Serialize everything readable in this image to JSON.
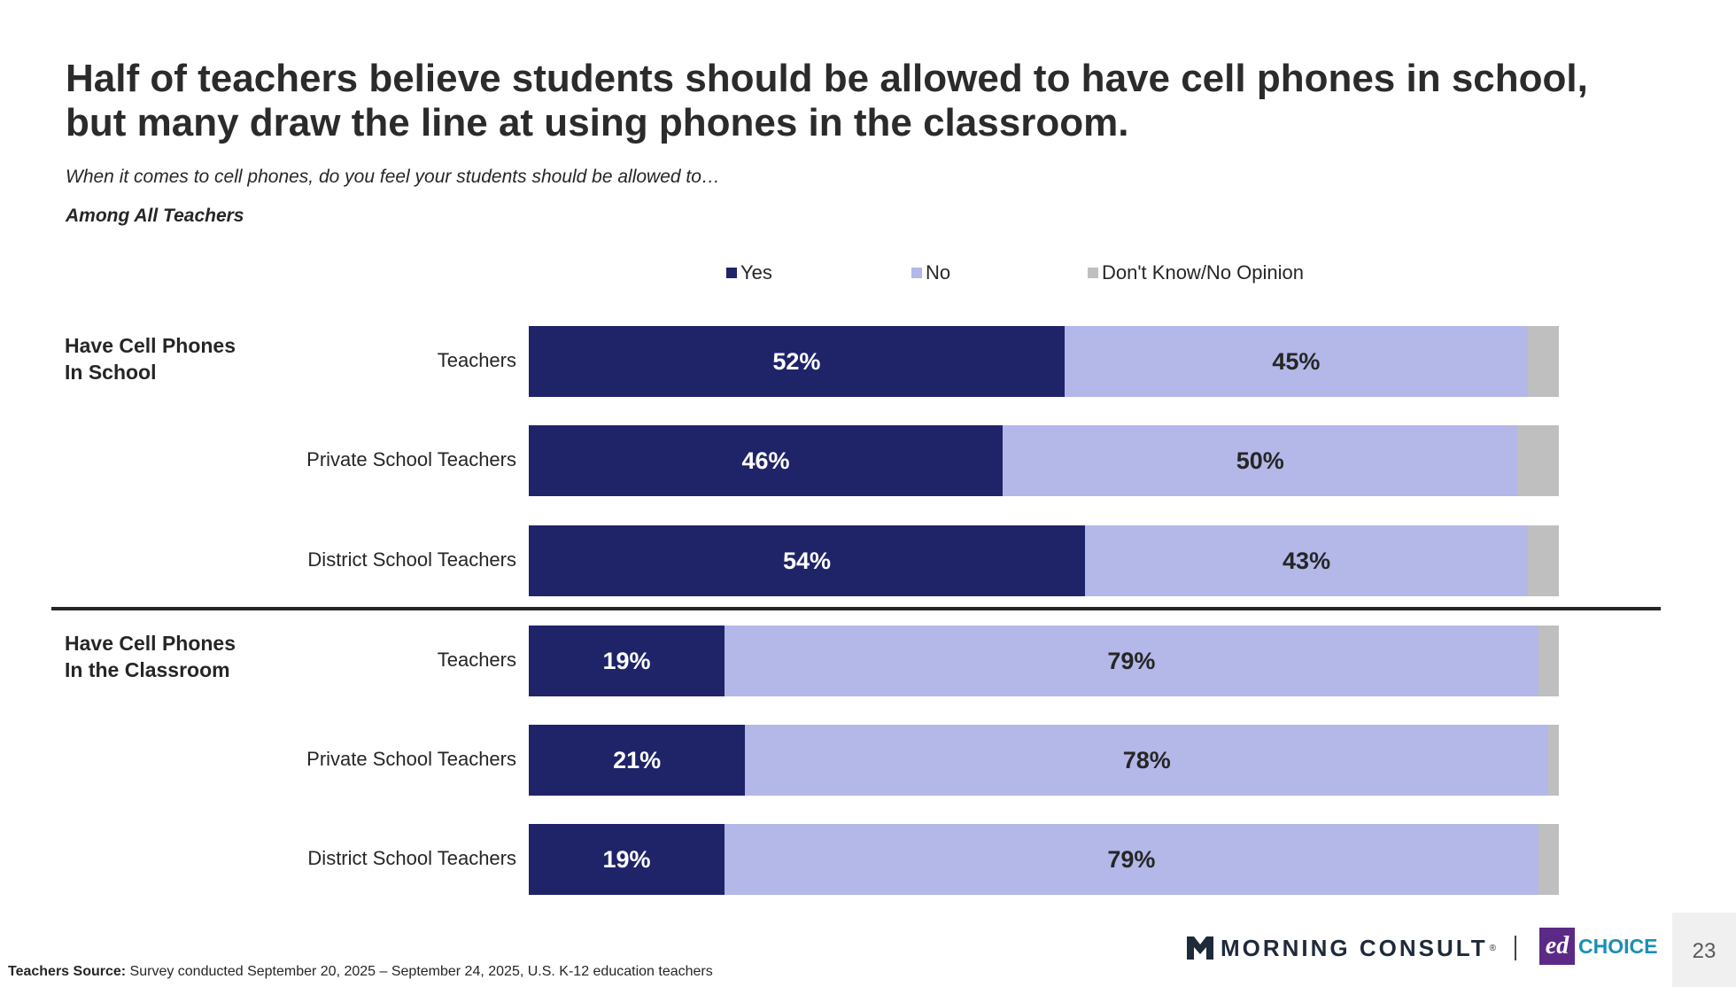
{
  "title": {
    "line1": "Half of teachers believe students should be allowed to have cell phones in school,",
    "line2": "but many draw the line at using phones in the classroom."
  },
  "subtitle": "When it comes to cell phones, do you feel your students should be allowed to…",
  "base_label": "Among All Teachers",
  "colors": {
    "yes": "#1f2469",
    "no": "#b3b8e8",
    "dk": "#bfbfbf"
  },
  "chart_data": {
    "type": "bar",
    "orientation": "horizontal",
    "stacked": true,
    "legend": [
      "Yes",
      "No",
      "Don't Know/No Opinion"
    ],
    "legend_position": "top",
    "xlim": [
      0,
      100
    ],
    "groups": [
      {
        "label_line1": "Have Cell Phones",
        "label_line2": "In School",
        "rows": [
          {
            "category": "Teachers",
            "yes": 52,
            "no": 45,
            "dk": 3,
            "yes_label": "52%",
            "no_label": "45%"
          },
          {
            "category": "Private School Teachers",
            "yes": 46,
            "no": 50,
            "dk": 4,
            "yes_label": "46%",
            "no_label": "50%"
          },
          {
            "category": "District School Teachers",
            "yes": 54,
            "no": 43,
            "dk": 3,
            "yes_label": "54%",
            "no_label": "43%"
          }
        ]
      },
      {
        "label_line1": "Have Cell Phones",
        "label_line2": "In the Classroom",
        "rows": [
          {
            "category": "Teachers",
            "yes": 19,
            "no": 79,
            "dk": 2,
            "yes_label": "19%",
            "no_label": "79%"
          },
          {
            "category": "Private School Teachers",
            "yes": 21,
            "no": 78,
            "dk": 1,
            "yes_label": "21%",
            "no_label": "78%"
          },
          {
            "category": "District School Teachers",
            "yes": 19,
            "no": 79,
            "dk": 2,
            "yes_label": "19%",
            "no_label": "79%"
          }
        ]
      }
    ]
  },
  "footer": {
    "source_label": "Teachers Source:",
    "source_text": " Survey conducted September 20, 2025 – September 24, 2025, U.S. K-12 education teachers"
  },
  "logos": {
    "morning_consult": "MORNING CONSULT",
    "edchoice_ed": "ed",
    "edchoice_choice": "CHOICE"
  },
  "page_number": "23"
}
